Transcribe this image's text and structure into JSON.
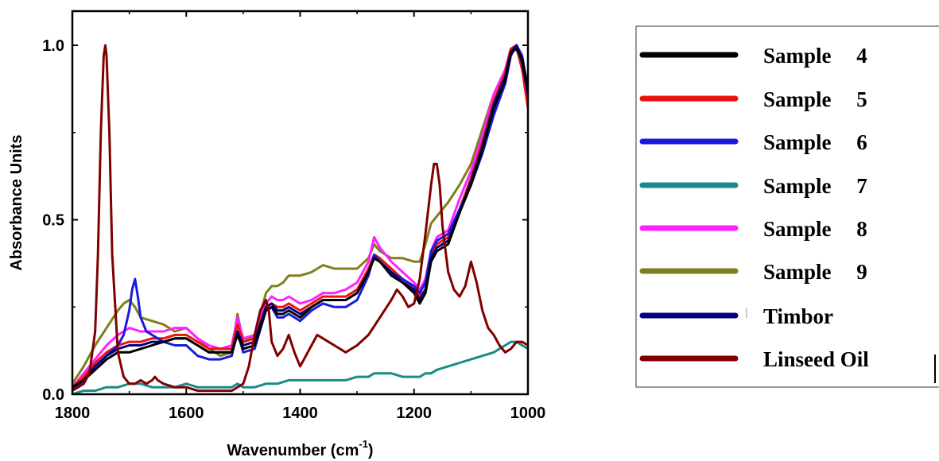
{
  "chart_data": {
    "type": "line",
    "xlabel": "Wavenumber (cm",
    "xlabel_sup": "-1",
    "xlabel_close": ")",
    "ylabel": "Absorbance Units",
    "xlim": [
      1800,
      1000
    ],
    "ylim": [
      0.0,
      1.08
    ],
    "x_ticks": [
      1800,
      1600,
      1400,
      1200,
      1000
    ],
    "y_ticks": [
      0.0,
      0.5,
      1.0
    ],
    "x_tick_labels": [
      "1800",
      "1600",
      "1400",
      "1200",
      "1000"
    ],
    "y_tick_labels": [
      "0.0",
      "0.5",
      "1.0"
    ],
    "legend_position": "right",
    "series": [
      {
        "name": "Sample",
        "number": "4",
        "color": "#000000",
        "x": [
          1800,
          1780,
          1760,
          1740,
          1720,
          1700,
          1680,
          1660,
          1640,
          1620,
          1600,
          1580,
          1560,
          1540,
          1520,
          1510,
          1500,
          1480,
          1460,
          1450,
          1440,
          1430,
          1420,
          1400,
          1380,
          1360,
          1340,
          1320,
          1300,
          1280,
          1270,
          1260,
          1240,
          1220,
          1200,
          1190,
          1180,
          1170,
          1160,
          1140,
          1120,
          1100,
          1080,
          1060,
          1040,
          1030,
          1020,
          1010,
          1000
        ],
        "y": [
          0.02,
          0.04,
          0.07,
          0.1,
          0.12,
          0.12,
          0.13,
          0.14,
          0.15,
          0.16,
          0.16,
          0.14,
          0.12,
          0.12,
          0.12,
          0.17,
          0.13,
          0.14,
          0.24,
          0.25,
          0.23,
          0.23,
          0.24,
          0.22,
          0.25,
          0.27,
          0.27,
          0.27,
          0.29,
          0.35,
          0.39,
          0.38,
          0.34,
          0.32,
          0.29,
          0.26,
          0.29,
          0.38,
          0.41,
          0.43,
          0.52,
          0.6,
          0.7,
          0.82,
          0.9,
          0.98,
          0.99,
          0.96,
          0.88
        ]
      },
      {
        "name": "Sample",
        "number": "5",
        "color": "#ee1111",
        "x": [
          1800,
          1780,
          1760,
          1740,
          1720,
          1700,
          1680,
          1660,
          1640,
          1620,
          1600,
          1580,
          1560,
          1540,
          1520,
          1510,
          1500,
          1480,
          1460,
          1450,
          1440,
          1430,
          1420,
          1400,
          1380,
          1360,
          1340,
          1320,
          1300,
          1280,
          1270,
          1260,
          1240,
          1220,
          1200,
          1190,
          1180,
          1170,
          1160,
          1140,
          1120,
          1100,
          1080,
          1060,
          1040,
          1030,
          1020,
          1010,
          1000
        ],
        "y": [
          0.02,
          0.05,
          0.09,
          0.12,
          0.14,
          0.15,
          0.15,
          0.16,
          0.16,
          0.17,
          0.17,
          0.15,
          0.13,
          0.13,
          0.13,
          0.2,
          0.15,
          0.16,
          0.25,
          0.26,
          0.25,
          0.25,
          0.26,
          0.24,
          0.26,
          0.28,
          0.28,
          0.28,
          0.3,
          0.36,
          0.4,
          0.39,
          0.36,
          0.33,
          0.3,
          0.28,
          0.3,
          0.4,
          0.43,
          0.45,
          0.53,
          0.62,
          0.72,
          0.84,
          0.92,
          0.99,
          1.0,
          0.93,
          0.82
        ]
      },
      {
        "name": "Sample",
        "number": "6",
        "color": "#1a1adc",
        "x": [
          1800,
          1780,
          1760,
          1740,
          1720,
          1710,
          1700,
          1695,
          1690,
          1685,
          1680,
          1670,
          1660,
          1640,
          1620,
          1600,
          1580,
          1560,
          1540,
          1520,
          1510,
          1500,
          1480,
          1460,
          1450,
          1440,
          1430,
          1420,
          1400,
          1380,
          1360,
          1340,
          1320,
          1300,
          1280,
          1270,
          1260,
          1240,
          1220,
          1200,
          1190,
          1180,
          1170,
          1160,
          1140,
          1120,
          1100,
          1080,
          1060,
          1040,
          1030,
          1020,
          1010,
          1000
        ],
        "y": [
          0.01,
          0.04,
          0.08,
          0.11,
          0.14,
          0.17,
          0.24,
          0.3,
          0.33,
          0.28,
          0.22,
          0.18,
          0.17,
          0.15,
          0.14,
          0.14,
          0.11,
          0.1,
          0.1,
          0.11,
          0.18,
          0.12,
          0.13,
          0.24,
          0.25,
          0.22,
          0.22,
          0.23,
          0.21,
          0.24,
          0.26,
          0.25,
          0.25,
          0.27,
          0.34,
          0.4,
          0.38,
          0.35,
          0.33,
          0.31,
          0.29,
          0.32,
          0.41,
          0.44,
          0.46,
          0.53,
          0.6,
          0.69,
          0.8,
          0.89,
          0.97,
          1.0,
          0.97,
          0.87
        ]
      },
      {
        "name": "Sample",
        "number": "7",
        "color": "#1a8a8a",
        "x": [
          1800,
          1780,
          1760,
          1740,
          1720,
          1700,
          1680,
          1660,
          1640,
          1620,
          1600,
          1580,
          1560,
          1540,
          1520,
          1510,
          1500,
          1480,
          1460,
          1440,
          1420,
          1400,
          1380,
          1360,
          1340,
          1320,
          1300,
          1280,
          1270,
          1260,
          1240,
          1220,
          1200,
          1190,
          1180,
          1170,
          1160,
          1140,
          1120,
          1100,
          1080,
          1060,
          1040,
          1030,
          1020,
          1010,
          1000
        ],
        "y": [
          0.0,
          0.01,
          0.01,
          0.02,
          0.02,
          0.03,
          0.03,
          0.02,
          0.02,
          0.02,
          0.03,
          0.02,
          0.02,
          0.02,
          0.02,
          0.03,
          0.02,
          0.02,
          0.03,
          0.03,
          0.04,
          0.04,
          0.04,
          0.04,
          0.04,
          0.04,
          0.05,
          0.05,
          0.06,
          0.06,
          0.06,
          0.05,
          0.05,
          0.05,
          0.06,
          0.06,
          0.07,
          0.08,
          0.09,
          0.1,
          0.11,
          0.12,
          0.14,
          0.15,
          0.15,
          0.14,
          0.13
        ]
      },
      {
        "name": "Sample",
        "number": "8",
        "color": "#ff22ff",
        "x": [
          1800,
          1780,
          1760,
          1740,
          1720,
          1700,
          1680,
          1660,
          1640,
          1620,
          1600,
          1580,
          1560,
          1540,
          1520,
          1510,
          1500,
          1480,
          1460,
          1450,
          1440,
          1430,
          1420,
          1400,
          1380,
          1360,
          1340,
          1320,
          1300,
          1280,
          1270,
          1260,
          1240,
          1220,
          1200,
          1190,
          1180,
          1170,
          1160,
          1140,
          1120,
          1100,
          1080,
          1060,
          1040,
          1030,
          1020,
          1010,
          1000
        ],
        "y": [
          0.02,
          0.06,
          0.1,
          0.14,
          0.17,
          0.19,
          0.18,
          0.18,
          0.18,
          0.19,
          0.19,
          0.16,
          0.14,
          0.13,
          0.14,
          0.22,
          0.16,
          0.17,
          0.26,
          0.28,
          0.27,
          0.27,
          0.28,
          0.26,
          0.27,
          0.29,
          0.29,
          0.3,
          0.32,
          0.38,
          0.45,
          0.42,
          0.38,
          0.35,
          0.32,
          0.3,
          0.33,
          0.41,
          0.45,
          0.47,
          0.56,
          0.64,
          0.74,
          0.86,
          0.93,
          0.99,
          1.0,
          0.96,
          0.86
        ]
      },
      {
        "name": "Sample",
        "number": "9",
        "color": "#7f7f1f",
        "x": [
          1800,
          1780,
          1760,
          1740,
          1720,
          1710,
          1700,
          1690,
          1680,
          1660,
          1640,
          1620,
          1600,
          1580,
          1560,
          1540,
          1520,
          1510,
          1500,
          1480,
          1460,
          1450,
          1440,
          1430,
          1420,
          1400,
          1380,
          1360,
          1340,
          1320,
          1300,
          1280,
          1270,
          1260,
          1240,
          1220,
          1200,
          1190,
          1180,
          1170,
          1160,
          1140,
          1120,
          1100,
          1080,
          1060,
          1040,
          1030,
          1020,
          1010,
          1000
        ],
        "y": [
          0.03,
          0.08,
          0.14,
          0.19,
          0.24,
          0.26,
          0.27,
          0.25,
          0.22,
          0.21,
          0.2,
          0.18,
          0.19,
          0.16,
          0.13,
          0.11,
          0.12,
          0.23,
          0.15,
          0.17,
          0.29,
          0.31,
          0.31,
          0.32,
          0.34,
          0.34,
          0.35,
          0.37,
          0.36,
          0.36,
          0.36,
          0.39,
          0.43,
          0.41,
          0.39,
          0.39,
          0.38,
          0.38,
          0.43,
          0.49,
          0.51,
          0.55,
          0.6,
          0.66,
          0.76,
          0.86,
          0.93,
          0.99,
          0.99,
          0.93,
          0.85
        ]
      },
      {
        "name": "Timbor",
        "number": "",
        "color": "#000080",
        "x": [
          1800,
          1780,
          1760,
          1740,
          1720,
          1700,
          1680,
          1660,
          1640,
          1620,
          1600,
          1580,
          1560,
          1540,
          1520,
          1510,
          1500,
          1480,
          1460,
          1450,
          1440,
          1430,
          1420,
          1400,
          1380,
          1360,
          1340,
          1320,
          1300,
          1280,
          1270,
          1260,
          1240,
          1220,
          1200,
          1190,
          1180,
          1170,
          1160,
          1140,
          1120,
          1100,
          1080,
          1060,
          1040,
          1030,
          1020,
          1010,
          1000
        ],
        "y": [
          0.02,
          0.04,
          0.08,
          0.11,
          0.13,
          0.14,
          0.14,
          0.15,
          0.15,
          0.16,
          0.16,
          0.14,
          0.12,
          0.12,
          0.12,
          0.18,
          0.14,
          0.15,
          0.25,
          0.26,
          0.24,
          0.24,
          0.25,
          0.23,
          0.25,
          0.27,
          0.27,
          0.27,
          0.29,
          0.35,
          0.39,
          0.38,
          0.35,
          0.32,
          0.3,
          0.27,
          0.3,
          0.39,
          0.42,
          0.44,
          0.52,
          0.61,
          0.71,
          0.83,
          0.91,
          0.98,
          1.0,
          0.95,
          0.86
        ]
      },
      {
        "name": "Linseed Oil",
        "number": "",
        "color": "#800000",
        "x": [
          1800,
          1780,
          1770,
          1760,
          1755,
          1750,
          1745,
          1742,
          1740,
          1735,
          1730,
          1720,
          1710,
          1700,
          1690,
          1680,
          1670,
          1660,
          1655,
          1650,
          1640,
          1620,
          1600,
          1580,
          1560,
          1540,
          1520,
          1500,
          1490,
          1480,
          1470,
          1460,
          1455,
          1450,
          1440,
          1430,
          1420,
          1410,
          1400,
          1390,
          1380,
          1370,
          1360,
          1340,
          1320,
          1300,
          1280,
          1260,
          1240,
          1230,
          1220,
          1210,
          1200,
          1190,
          1180,
          1170,
          1165,
          1160,
          1155,
          1150,
          1140,
          1130,
          1120,
          1110,
          1100,
          1090,
          1080,
          1070,
          1060,
          1050,
          1040,
          1030,
          1020,
          1010,
          1000
        ],
        "y": [
          0.01,
          0.03,
          0.06,
          0.18,
          0.4,
          0.75,
          0.97,
          1.0,
          0.97,
          0.75,
          0.4,
          0.12,
          0.05,
          0.03,
          0.03,
          0.04,
          0.03,
          0.04,
          0.05,
          0.04,
          0.03,
          0.02,
          0.02,
          0.01,
          0.01,
          0.01,
          0.01,
          0.03,
          0.08,
          0.17,
          0.24,
          0.27,
          0.24,
          0.15,
          0.11,
          0.13,
          0.17,
          0.12,
          0.08,
          0.11,
          0.14,
          0.17,
          0.16,
          0.14,
          0.12,
          0.14,
          0.17,
          0.22,
          0.27,
          0.3,
          0.28,
          0.25,
          0.26,
          0.33,
          0.46,
          0.6,
          0.66,
          0.66,
          0.6,
          0.48,
          0.35,
          0.3,
          0.28,
          0.31,
          0.38,
          0.32,
          0.24,
          0.19,
          0.17,
          0.14,
          0.12,
          0.13,
          0.15,
          0.15,
          0.14
        ]
      }
    ]
  }
}
